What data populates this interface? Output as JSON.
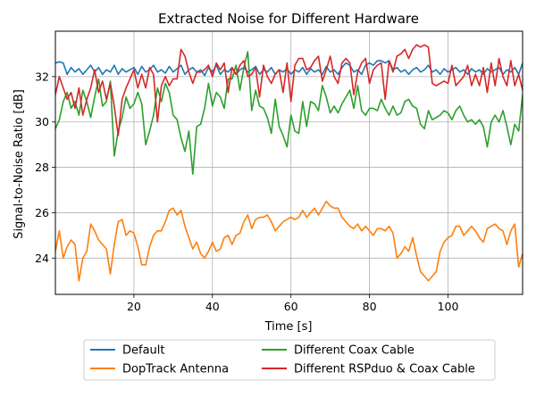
{
  "chart_data": {
    "type": "line",
    "title": "Extracted Noise for Different Hardware",
    "xlabel": "Time [s]",
    "ylabel": "Signal-to-Noise Ratio [dB]",
    "xlim": [
      0,
      119
    ],
    "ylim": [
      22.4,
      34.0
    ],
    "xticks": [
      20,
      40,
      60,
      80,
      100
    ],
    "yticks": [
      24,
      26,
      28,
      30,
      32
    ],
    "grid": true,
    "legend_placement": "below plot, two columns",
    "series": [
      {
        "name": "Default",
        "color": "#1f77b4",
        "x": [
          0,
          1,
          2,
          3,
          4,
          5,
          6,
          7,
          8,
          9,
          10,
          11,
          12,
          13,
          14,
          15,
          16,
          17,
          18,
          19,
          20,
          21,
          22,
          23,
          24,
          25,
          26,
          27,
          28,
          29,
          30,
          31,
          32,
          33,
          34,
          35,
          36,
          37,
          38,
          39,
          40,
          41,
          42,
          43,
          44,
          45,
          46,
          47,
          48,
          49,
          50,
          51,
          52,
          53,
          54,
          55,
          56,
          57,
          58,
          59,
          60,
          61,
          62,
          63,
          64,
          65,
          66,
          67,
          68,
          69,
          70,
          71,
          72,
          73,
          74,
          75,
          76,
          77,
          78,
          79,
          80,
          81,
          82,
          83,
          84,
          85,
          86,
          87,
          88,
          89,
          90,
          91,
          92,
          93,
          94,
          95,
          96,
          97,
          98,
          99,
          100,
          101,
          102,
          103,
          104,
          105,
          106,
          107,
          108,
          109,
          110,
          111,
          112,
          113,
          114,
          115,
          116,
          117,
          118,
          119
        ],
        "y": [
          32.6,
          32.65,
          32.6,
          32.1,
          32.4,
          32.2,
          32.35,
          32.1,
          32.3,
          32.5,
          32.2,
          32.4,
          32.1,
          32.3,
          32.2,
          32.5,
          32.1,
          32.35,
          32.2,
          32.3,
          32.4,
          32.1,
          32.45,
          32.2,
          32.3,
          32.5,
          32.2,
          32.3,
          32.15,
          32.45,
          32.2,
          32.35,
          32.5,
          32.1,
          32.3,
          32.4,
          32.2,
          32.3,
          32.05,
          32.4,
          32.2,
          32.5,
          32.1,
          32.3,
          32.2,
          32.4,
          32.1,
          32.3,
          32.4,
          32.2,
          32.3,
          32.45,
          32.1,
          32.3,
          32.2,
          32.4,
          32.1,
          32.3,
          32.2,
          32.35,
          32.1,
          32.3,
          32.2,
          32.4,
          32.1,
          32.35,
          32.2,
          32.3,
          32.1,
          32.45,
          32.2,
          32.3,
          32.1,
          32.4,
          32.6,
          32.5,
          32.2,
          32.3,
          32.1,
          32.5,
          32.6,
          32.5,
          32.7,
          32.7,
          32.6,
          32.7,
          32.3,
          32.4,
          32.2,
          32.3,
          32.1,
          32.3,
          32.4,
          32.2,
          32.3,
          32.5,
          32.2,
          32.3,
          32.1,
          32.35,
          32.2,
          32.3,
          32.4,
          32.2,
          32.3,
          32.1,
          32.35,
          32.2,
          32.3,
          32.1,
          32.35,
          32.2,
          32.3,
          32.4,
          32.1,
          32.3,
          32.2,
          32.4,
          32.1,
          32.6
        ]
      },
      {
        "name": "DopTrack Antenna",
        "color": "#ff7f0e",
        "x": [
          0,
          1,
          2,
          3,
          4,
          5,
          6,
          7,
          8,
          9,
          10,
          11,
          12,
          13,
          14,
          15,
          16,
          17,
          18,
          19,
          20,
          21,
          22,
          23,
          24,
          25,
          26,
          27,
          28,
          29,
          30,
          31,
          32,
          33,
          34,
          35,
          36,
          37,
          38,
          39,
          40,
          41,
          42,
          43,
          44,
          45,
          46,
          47,
          48,
          49,
          50,
          51,
          52,
          53,
          54,
          55,
          56,
          57,
          58,
          59,
          60,
          61,
          62,
          63,
          64,
          65,
          66,
          67,
          68,
          69,
          70,
          71,
          72,
          73,
          74,
          75,
          76,
          77,
          78,
          79,
          80,
          81,
          82,
          83,
          84,
          85,
          86,
          87,
          88,
          89,
          90,
          91,
          92,
          93,
          94,
          95,
          96,
          97,
          98,
          99,
          100,
          101,
          102,
          103,
          104,
          105,
          106,
          107,
          108,
          109,
          110,
          111,
          112,
          113,
          114,
          115,
          116,
          117,
          118,
          119
        ],
        "y": [
          24.3,
          25.2,
          24.0,
          24.5,
          24.8,
          24.6,
          23.0,
          24.0,
          24.3,
          25.5,
          25.2,
          24.8,
          24.6,
          24.4,
          23.3,
          24.6,
          25.6,
          25.7,
          25.0,
          25.2,
          25.1,
          24.5,
          23.7,
          23.7,
          24.5,
          25.0,
          25.2,
          25.2,
          25.6,
          26.1,
          26.2,
          25.9,
          26.1,
          25.4,
          24.9,
          24.4,
          24.7,
          24.2,
          24.0,
          24.3,
          24.7,
          24.3,
          24.4,
          24.9,
          25.0,
          24.6,
          25.0,
          25.1,
          25.6,
          25.9,
          25.3,
          25.7,
          25.8,
          25.8,
          25.9,
          25.6,
          25.2,
          25.4,
          25.6,
          25.7,
          25.8,
          25.7,
          25.8,
          26.1,
          25.8,
          26.0,
          26.2,
          25.9,
          26.2,
          26.5,
          26.3,
          26.2,
          26.2,
          25.8,
          25.6,
          25.4,
          25.3,
          25.5,
          25.2,
          25.4,
          25.2,
          25.0,
          25.3,
          25.3,
          25.2,
          25.4,
          25.1,
          24.0,
          24.2,
          24.5,
          24.3,
          24.9,
          24.1,
          23.4,
          23.2,
          23.0,
          23.2,
          23.4,
          24.3,
          24.7,
          24.9,
          25.0,
          25.4,
          25.4,
          25.0,
          25.2,
          25.4,
          25.2,
          24.9,
          24.7,
          25.3,
          25.4,
          25.5,
          25.3,
          25.2,
          24.6,
          25.2,
          25.5,
          23.6,
          24.2
        ]
      },
      {
        "name": "Different Coax Cable",
        "color": "#2ca02c",
        "x": [
          0,
          1,
          2,
          3,
          4,
          5,
          6,
          7,
          8,
          9,
          10,
          11,
          12,
          13,
          14,
          15,
          16,
          17,
          18,
          19,
          20,
          21,
          22,
          23,
          24,
          25,
          26,
          27,
          28,
          29,
          30,
          31,
          32,
          33,
          34,
          35,
          36,
          37,
          38,
          39,
          40,
          41,
          42,
          43,
          44,
          45,
          46,
          47,
          48,
          49,
          50,
          51,
          52,
          53,
          54,
          55,
          56,
          57,
          58,
          59,
          60,
          61,
          62,
          63,
          64,
          65,
          66,
          67,
          68,
          69,
          70,
          71,
          72,
          73,
          74,
          75,
          76,
          77,
          78,
          79,
          80,
          81,
          82,
          83,
          84,
          85,
          86,
          87,
          88,
          89,
          90,
          91,
          92,
          93,
          94,
          95,
          96,
          97,
          98,
          99,
          100,
          101,
          102,
          103,
          104,
          105,
          106,
          107,
          108,
          109,
          110,
          111,
          112,
          113,
          114,
          115,
          116,
          117,
          118,
          119
        ],
        "y": [
          29.7,
          30.1,
          30.9,
          31.3,
          30.6,
          30.9,
          30.3,
          31.4,
          30.9,
          30.2,
          31.1,
          31.9,
          30.7,
          30.9,
          31.8,
          28.5,
          29.6,
          30.2,
          31.1,
          30.6,
          30.8,
          31.3,
          30.8,
          29.0,
          29.6,
          30.3,
          31.5,
          30.9,
          31.7,
          31.3,
          30.3,
          30.1,
          29.3,
          28.7,
          29.6,
          27.7,
          29.8,
          29.9,
          30.6,
          31.7,
          30.7,
          31.3,
          31.1,
          30.6,
          31.9,
          31.9,
          32.5,
          31.4,
          32.4,
          33.1,
          30.5,
          31.4,
          30.7,
          30.6,
          30.2,
          29.5,
          31.0,
          29.8,
          29.4,
          28.9,
          30.3,
          29.6,
          29.5,
          30.9,
          29.8,
          30.9,
          30.8,
          30.5,
          31.6,
          31.1,
          30.4,
          30.7,
          30.4,
          30.8,
          31.1,
          31.4,
          30.6,
          31.6,
          30.5,
          30.3,
          30.6,
          30.6,
          30.5,
          31.0,
          30.6,
          30.3,
          30.7,
          30.3,
          30.4,
          30.9,
          31.0,
          30.7,
          30.6,
          29.9,
          29.7,
          30.5,
          30.1,
          30.2,
          30.3,
          30.5,
          30.4,
          30.1,
          30.5,
          30.7,
          30.3,
          30.0,
          30.1,
          29.9,
          30.1,
          29.8,
          28.9,
          30.0,
          30.3,
          30.0,
          30.5,
          29.8,
          29.0,
          29.9,
          29.6,
          31.2
        ]
      },
      {
        "name": "Different RSPduo & Coax Cable",
        "color": "#d62728",
        "x": [
          0,
          1,
          2,
          3,
          4,
          5,
          6,
          7,
          8,
          9,
          10,
          11,
          12,
          13,
          14,
          15,
          16,
          17,
          18,
          19,
          20,
          21,
          22,
          23,
          24,
          25,
          26,
          27,
          28,
          29,
          30,
          31,
          32,
          33,
          34,
          35,
          36,
          37,
          38,
          39,
          40,
          41,
          42,
          43,
          44,
          45,
          46,
          47,
          48,
          49,
          50,
          51,
          52,
          53,
          54,
          55,
          56,
          57,
          58,
          59,
          60,
          61,
          62,
          63,
          64,
          65,
          66,
          67,
          68,
          69,
          70,
          71,
          72,
          73,
          74,
          75,
          76,
          77,
          78,
          79,
          80,
          81,
          82,
          83,
          84,
          85,
          86,
          87,
          88,
          89,
          90,
          91,
          92,
          93,
          94,
          95,
          96,
          97,
          98,
          99,
          100,
          101,
          102,
          103,
          104,
          105,
          106,
          107,
          108,
          109,
          110,
          111,
          112,
          113,
          114,
          115,
          116,
          117,
          118,
          119
        ],
        "y": [
          31.2,
          32.0,
          31.5,
          31.0,
          31.3,
          30.6,
          31.5,
          30.3,
          31.0,
          31.5,
          32.3,
          31.3,
          31.8,
          31.0,
          31.7,
          30.7,
          29.4,
          31.0,
          31.5,
          31.9,
          32.3,
          31.5,
          32.1,
          31.5,
          32.4,
          32.1,
          30.0,
          31.6,
          32.0,
          31.6,
          31.9,
          31.9,
          33.2,
          32.9,
          32.2,
          31.7,
          32.2,
          32.2,
          32.3,
          32.5,
          32.0,
          32.6,
          32.3,
          32.6,
          31.3,
          32.4,
          32.1,
          32.5,
          32.7,
          32.0,
          32.1,
          32.4,
          31.1,
          32.5,
          32.0,
          31.7,
          32.1,
          32.3,
          31.3,
          32.6,
          30.9,
          32.5,
          32.8,
          32.8,
          32.3,
          32.4,
          32.7,
          32.9,
          31.8,
          32.3,
          32.9,
          32.0,
          31.7,
          32.6,
          32.8,
          32.6,
          31.2,
          32.2,
          32.6,
          32.8,
          31.7,
          32.3,
          32.5,
          32.6,
          31.0,
          32.7,
          32.2,
          32.9,
          33.0,
          33.2,
          32.8,
          33.2,
          33.4,
          33.3,
          33.4,
          33.3,
          31.7,
          31.6,
          31.7,
          31.8,
          31.7,
          32.5,
          31.6,
          31.8,
          32.0,
          32.5,
          31.6,
          32.1,
          31.6,
          32.4,
          31.3,
          32.6,
          31.6,
          32.8,
          32.0,
          31.6,
          32.7,
          31.6,
          32.1,
          31.4
        ]
      }
    ]
  }
}
